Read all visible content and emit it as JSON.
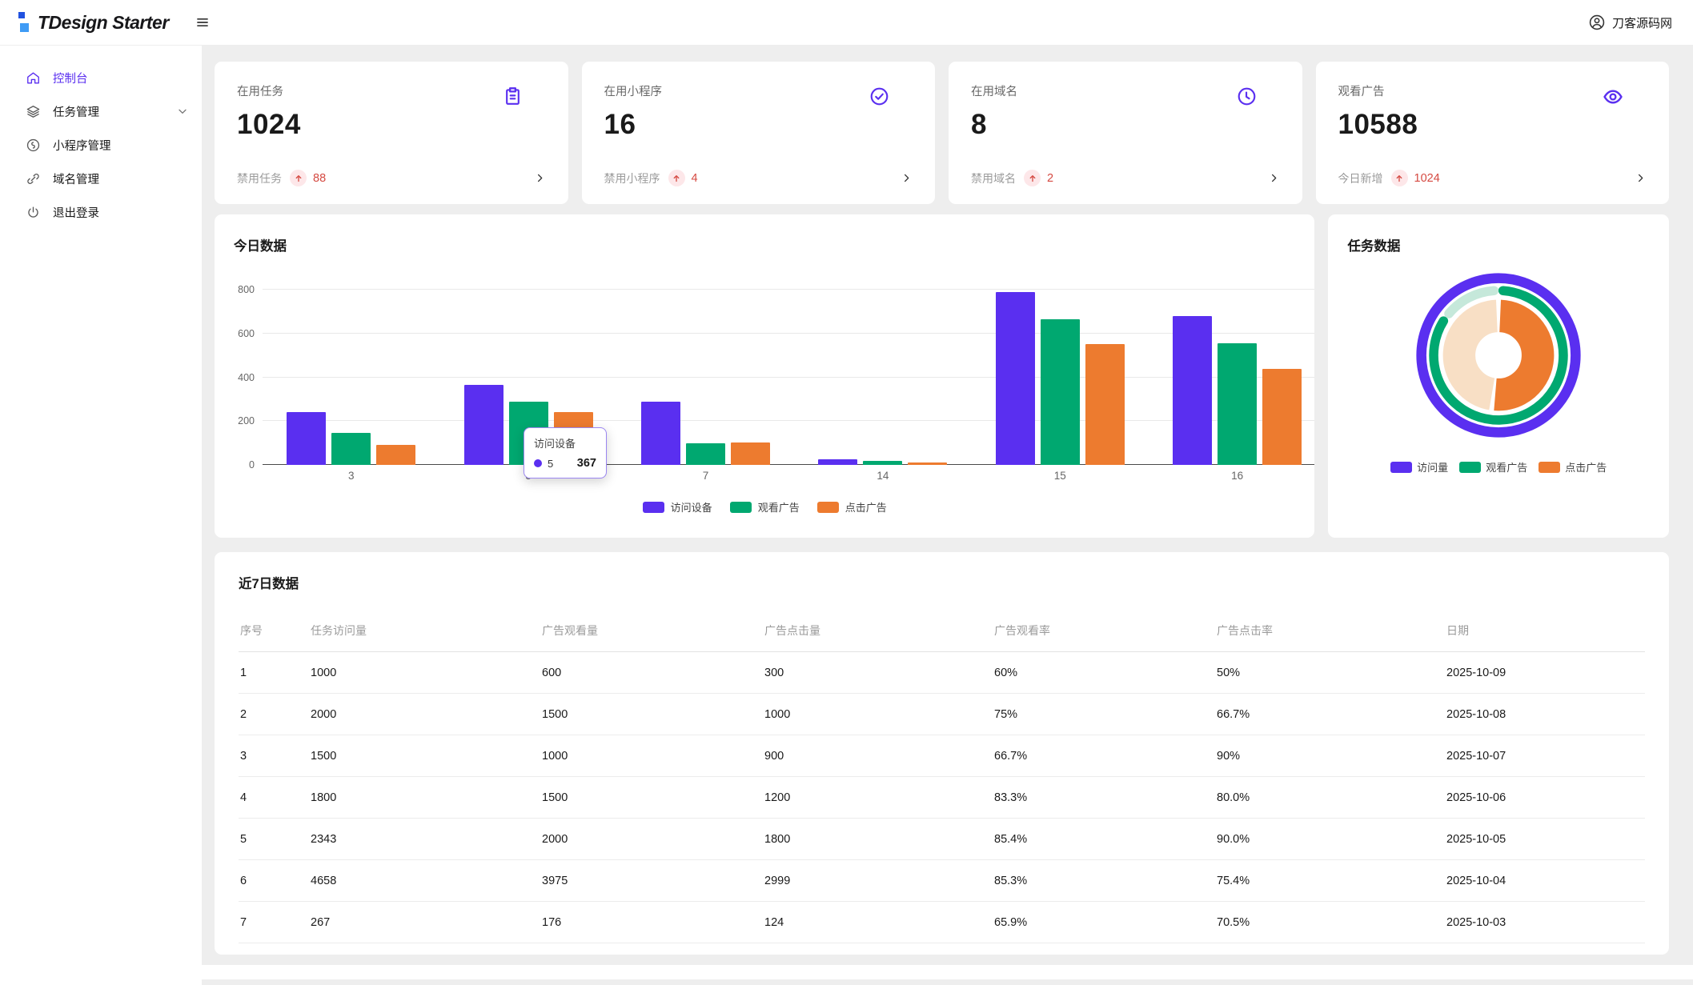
{
  "header": {
    "logo_text": "TDesign Starter",
    "user_name": "刀客源码网"
  },
  "sidebar": {
    "items": [
      {
        "label": "控制台",
        "icon": "home-icon",
        "active": true,
        "expandable": false
      },
      {
        "label": "任务管理",
        "icon": "layers-icon",
        "active": false,
        "expandable": true
      },
      {
        "label": "小程序管理",
        "icon": "miniprogram-icon",
        "active": false,
        "expandable": false
      },
      {
        "label": "域名管理",
        "icon": "link-icon",
        "active": false,
        "expandable": false
      },
      {
        "label": "退出登录",
        "icon": "power-icon",
        "active": false,
        "expandable": false
      }
    ]
  },
  "stat_cards": [
    {
      "label": "在用任务",
      "value": "1024",
      "icon": "clipboard-icon",
      "footer_label": "禁用任务",
      "delta": "88"
    },
    {
      "label": "在用小程序",
      "value": "16",
      "icon": "check-circle-icon",
      "footer_label": "禁用小程序",
      "delta": "4"
    },
    {
      "label": "在用域名",
      "value": "8",
      "icon": "clock-icon",
      "footer_label": "禁用域名",
      "delta": "2"
    },
    {
      "label": "观看广告",
      "value": "10588",
      "icon": "eye-icon",
      "footer_label": "今日新增",
      "delta": "1024"
    }
  ],
  "tooltip": {
    "title": "访问设备",
    "series_label": "5",
    "value": "367"
  },
  "chart_data": [
    {
      "type": "bar",
      "title": "今日数据",
      "categories": [
        "3",
        "5",
        "7",
        "14",
        "15",
        "16"
      ],
      "series": [
        {
          "name": "访问设备",
          "color": "#5a2ff0",
          "values": [
            240,
            367,
            290,
            25,
            790,
            680
          ]
        },
        {
          "name": "观看广告",
          "color": "#00a870",
          "values": [
            148,
            290,
            100,
            18,
            665,
            555
          ]
        },
        {
          "name": "点击广告",
          "color": "#ed7b2f",
          "values": [
            90,
            240,
            102,
            10,
            550,
            440
          ]
        }
      ],
      "ylim": [
        0,
        800
      ],
      "yticks": [
        0,
        200,
        400,
        600,
        800
      ],
      "grid": true,
      "legend_position": "bottom",
      "tooltip": {
        "series": "访问设备",
        "category": "5",
        "value": 367
      }
    },
    {
      "type": "pie",
      "title": "任务数据",
      "rings": [
        {
          "name": "访问量",
          "segments": [
            {
              "value": 100,
              "color": "#5a2ff0"
            }
          ]
        },
        {
          "name": "观看广告",
          "segments": [
            {
              "value": 85,
              "color": "#00a870"
            },
            {
              "value": 15,
              "color": "#c5e8da"
            }
          ]
        },
        {
          "name": "点击广告",
          "segments": [
            {
              "value": 52,
              "color": "#ed7b2f"
            },
            {
              "value": 48,
              "color": "#f8dfc5"
            }
          ]
        }
      ],
      "legend": [
        {
          "name": "访问量",
          "color": "#5a2ff0"
        },
        {
          "name": "观看广告",
          "color": "#00a870"
        },
        {
          "name": "点击广告",
          "color": "#ed7b2f"
        }
      ],
      "legend_position": "bottom"
    }
  ],
  "table": {
    "title": "近7日数据",
    "columns": [
      "序号",
      "任务访问量",
      "广告观看量",
      "广告点击量",
      "广告观看率",
      "广告点击率",
      "日期"
    ],
    "rows": [
      [
        "1",
        "1000",
        "600",
        "300",
        "60%",
        "50%",
        "2025-10-09"
      ],
      [
        "2",
        "2000",
        "1500",
        "1000",
        "75%",
        "66.7%",
        "2025-10-08"
      ],
      [
        "3",
        "1500",
        "1000",
        "900",
        "66.7%",
        "90%",
        "2025-10-07"
      ],
      [
        "4",
        "1800",
        "1500",
        "1200",
        "83.3%",
        "80.0%",
        "2025-10-06"
      ],
      [
        "5",
        "2343",
        "2000",
        "1800",
        "85.4%",
        "90.0%",
        "2025-10-05"
      ],
      [
        "6",
        "4658",
        "3975",
        "2999",
        "85.3%",
        "75.4%",
        "2025-10-04"
      ],
      [
        "7",
        "267",
        "176",
        "124",
        "65.9%",
        "70.5%",
        "2025-10-03"
      ]
    ]
  },
  "colors": {
    "primary": "#5a2ff0",
    "success": "#00a870",
    "warning": "#ed7b2f",
    "error": "#d54941"
  }
}
